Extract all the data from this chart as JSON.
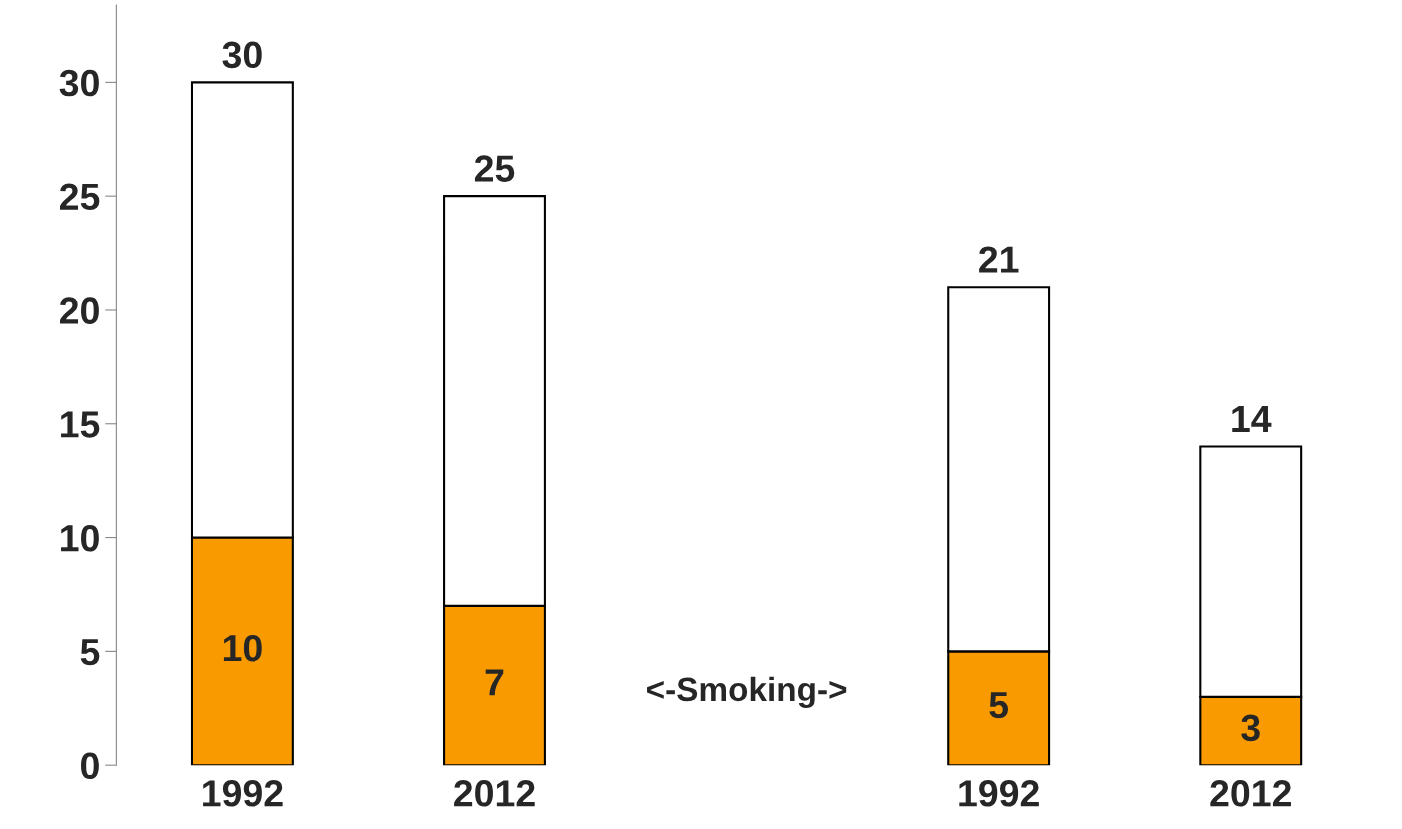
{
  "chart_data": {
    "type": "bar",
    "stacked": true,
    "categories": [
      "1992",
      "2012",
      null,
      "1992",
      "2012"
    ],
    "series": [
      {
        "color": "#f99b00",
        "values": [
          10,
          7,
          null,
          5,
          3
        ],
        "value_labels": [
          "10",
          "7",
          null,
          "5",
          "3"
        ]
      },
      {
        "color": "#ffffff",
        "values": [
          20,
          18,
          null,
          16,
          11
        ]
      }
    ],
    "totals": [
      "30",
      "25",
      null,
      "21",
      "14"
    ],
    "annotations": [
      "<-Smoking->"
    ],
    "ylim": [
      0,
      33.4
    ],
    "yticks": [
      0,
      5,
      10,
      15,
      20,
      25,
      30
    ],
    "grid": false,
    "legend": false
  }
}
